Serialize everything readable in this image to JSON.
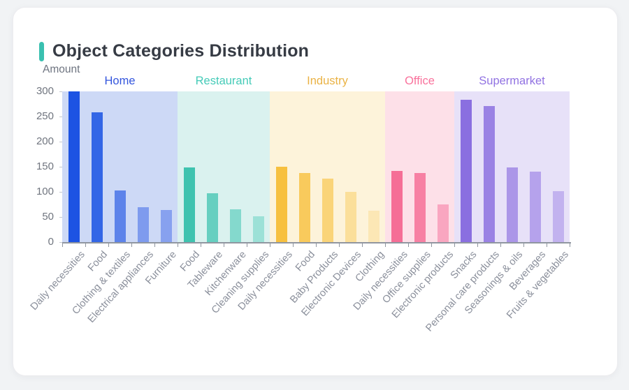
{
  "header": {
    "title": "Object Categories Distribution",
    "accent_color": "#3ac0b0"
  },
  "chart_data": {
    "type": "bar",
    "title": "Object Categories Distribution",
    "ylabel": "Amount",
    "xlabel": "",
    "ylim": [
      0,
      300
    ],
    "yticks": [
      "0",
      "50",
      "100",
      "150",
      "200",
      "250",
      "300"
    ],
    "grid": false,
    "legend_position": "none",
    "groups": [
      {
        "name": "Home",
        "label_color": "#3355dd",
        "band_color": "#cdd9f6",
        "categories": [
          "Daily necessities",
          "Food",
          "Clothing & textiles",
          "Electrical appliances",
          "Furniture"
        ],
        "values": [
          300,
          258,
          103,
          69,
          64
        ],
        "bar_colors": [
          "#1d53e3",
          "#3366e6",
          "#5d83ea",
          "#7e9bee",
          "#87a1ef"
        ]
      },
      {
        "name": "Restaurant",
        "label_color": "#45cbb8",
        "band_color": "#daf2ef",
        "categories": [
          "Food",
          "Tableware",
          "Kitchenware",
          "Cleaning supplies"
        ],
        "values": [
          148,
          97,
          65,
          51
        ],
        "bar_colors": [
          "#3fc3af",
          "#66cfc0",
          "#84d9cd",
          "#9ce1d7"
        ]
      },
      {
        "name": "Industry",
        "label_color": "#eab244",
        "band_color": "#fdf3da",
        "categories": [
          "Daily necessities",
          "Food",
          "Baby Products",
          "Electronic Devices",
          "Clothing"
        ],
        "values": [
          150,
          138,
          126,
          100,
          63
        ],
        "bar_colors": [
          "#f7c03f",
          "#f9ca5c",
          "#fad479",
          "#fbdf9a",
          "#fce7b5"
        ]
      },
      {
        "name": "Office",
        "label_color": "#f9729c",
        "band_color": "#fde0e8",
        "categories": [
          "Daily necessities",
          "Office supplies",
          "Electronic products"
        ],
        "values": [
          142,
          138,
          75
        ],
        "bar_colors": [
          "#f56e96",
          "#f780a3",
          "#f9a6c0"
        ]
      },
      {
        "name": "Supermarket",
        "label_color": "#9172e2",
        "band_color": "#e7e1f8",
        "categories": [
          "Snacks",
          "Personal care products",
          "Seasonings & oils",
          "Beverages",
          "Fruits & vegetables"
        ],
        "values": [
          284,
          271,
          148,
          140,
          101
        ],
        "bar_colors": [
          "#8a6fe0",
          "#9a82e4",
          "#ab96e8",
          "#b5a2ec",
          "#c2b2ef"
        ]
      }
    ]
  }
}
